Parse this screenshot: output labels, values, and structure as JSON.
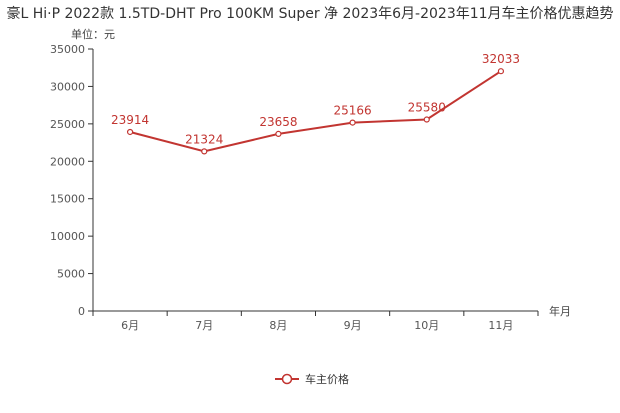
{
  "title": "豪L Hi·P 2022款 1.5TD-DHT Pro 100KM Super 净 2023年6月-2023年11月车主价格优惠趋势",
  "chart_data": {
    "type": "line",
    "title": "豪L Hi·P 2022款 1.5TD-DHT Pro 100KM Super 净 2023年6月-2023年11月车主价格优惠趋势",
    "categories": [
      "6月",
      "7月",
      "8月",
      "9月",
      "10月",
      "11月"
    ],
    "series": [
      {
        "name": "车主价格",
        "values": [
          23914,
          21324,
          23658,
          25166,
          25580,
          32033
        ],
        "color": "#c23531"
      }
    ],
    "xlabel": "年月",
    "ylabel": "单位：元",
    "ylim": [
      0,
      35000
    ],
    "yticks": [
      0,
      5000,
      10000,
      15000,
      20000,
      25000,
      30000,
      35000
    ],
    "grid": false,
    "legend": "bottom-center"
  }
}
